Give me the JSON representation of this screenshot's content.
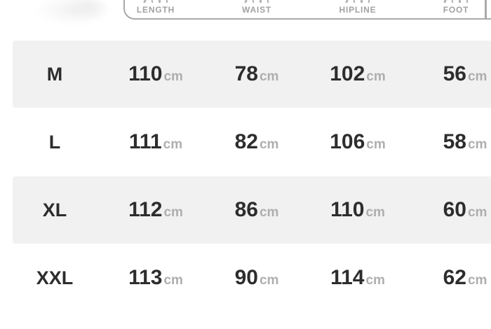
{
  "colors": {
    "row_shade": "#f1f1f2",
    "text_dark": "#2d2d2d",
    "unit_gray": "#aeaeae",
    "header_label_gray": "#a2a2a2",
    "card_border_gray": "#a9a9a9"
  },
  "chart_data": {
    "type": "table",
    "description": "apparel size chart, header card cropped at top and right of viewport",
    "columns": [
      "LENGTH",
      "WAIST",
      "HIPLINE",
      "FOOT"
    ],
    "unit": "cm",
    "rows": [
      {
        "size": "M",
        "values": [
          110,
          78,
          102,
          56
        ]
      },
      {
        "size": "L",
        "values": [
          111,
          82,
          106,
          58
        ]
      },
      {
        "size": "XL",
        "values": [
          112,
          86,
          110,
          60
        ]
      },
      {
        "size": "XXL",
        "values": [
          113,
          90,
          114,
          62
        ]
      }
    ],
    "layout": {
      "shaded_rows": [
        "M",
        "XL"
      ],
      "grid": "none",
      "legend": "none"
    }
  }
}
